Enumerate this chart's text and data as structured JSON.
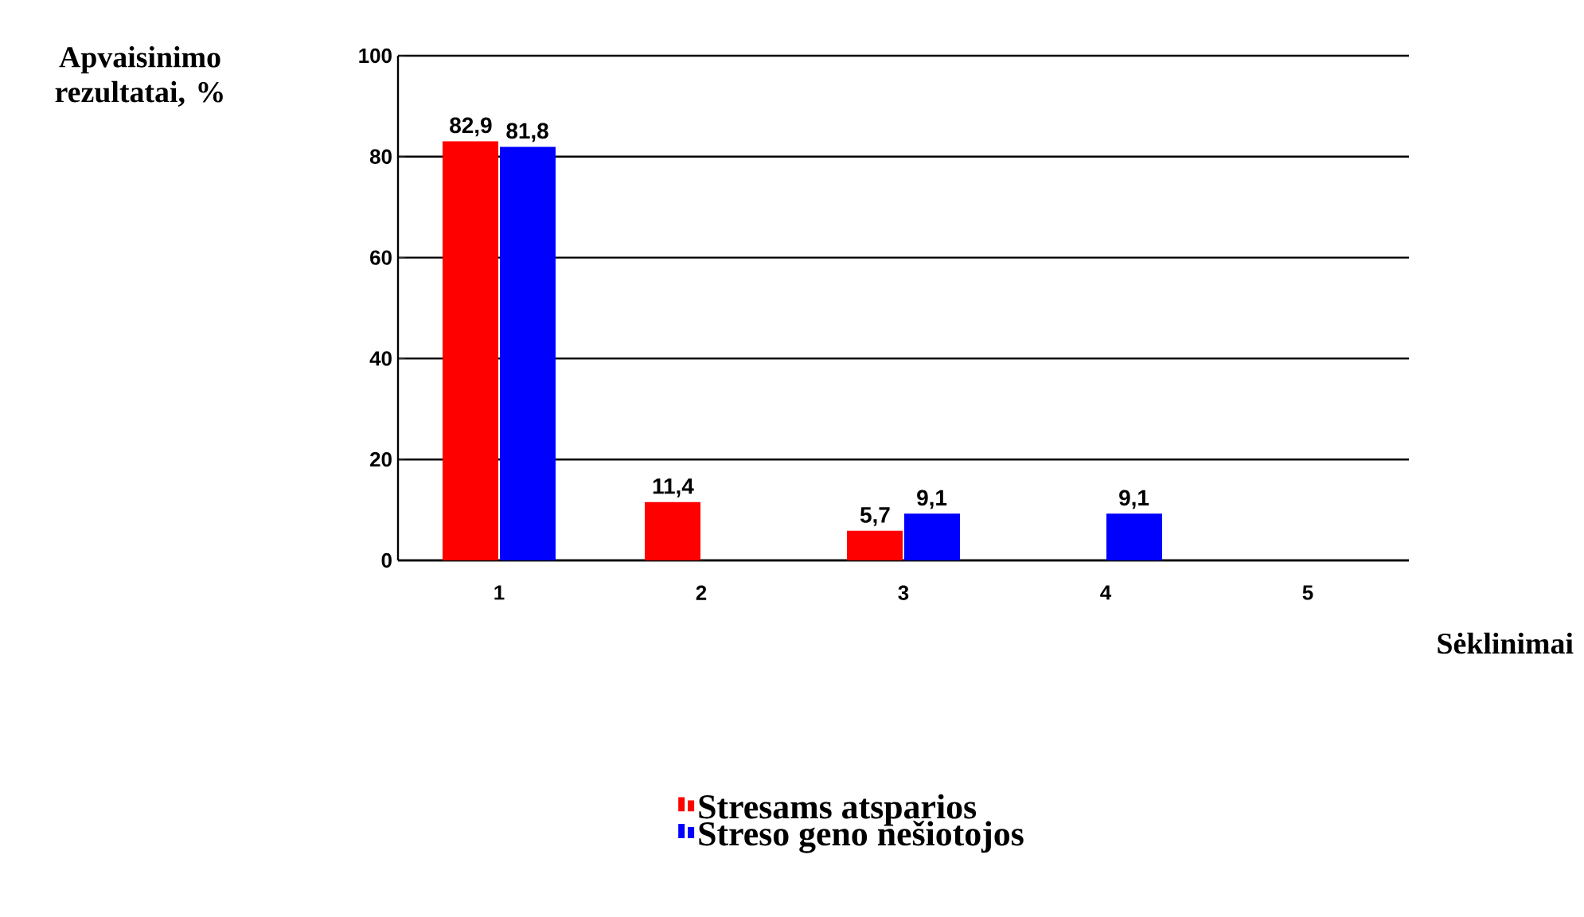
{
  "chart_data": {
    "type": "bar",
    "xlabel": "Sėklinimai",
    "ylabel": "Apvaisinimo rezultatai, %",
    "categories": [
      "1",
      "2",
      "3",
      "4",
      "5"
    ],
    "series": [
      {
        "name": "Stresams atsparios",
        "color": "#ff0000",
        "values": [
          82.9,
          11.4,
          5.7,
          null,
          null
        ],
        "value_labels": [
          "82,9",
          "11,4",
          "5,7",
          null,
          null
        ]
      },
      {
        "name": "Streso geno nešiotojos",
        "color": "#0000ff",
        "values": [
          81.8,
          null,
          9.1,
          9.1,
          null
        ],
        "value_labels": [
          "81,8",
          null,
          "9,1",
          "9,1",
          null
        ]
      }
    ],
    "ylim": [
      0,
      100
    ],
    "yticks": [
      0,
      20,
      40,
      60,
      80,
      100
    ],
    "grid": "y",
    "legend": "bottom"
  }
}
